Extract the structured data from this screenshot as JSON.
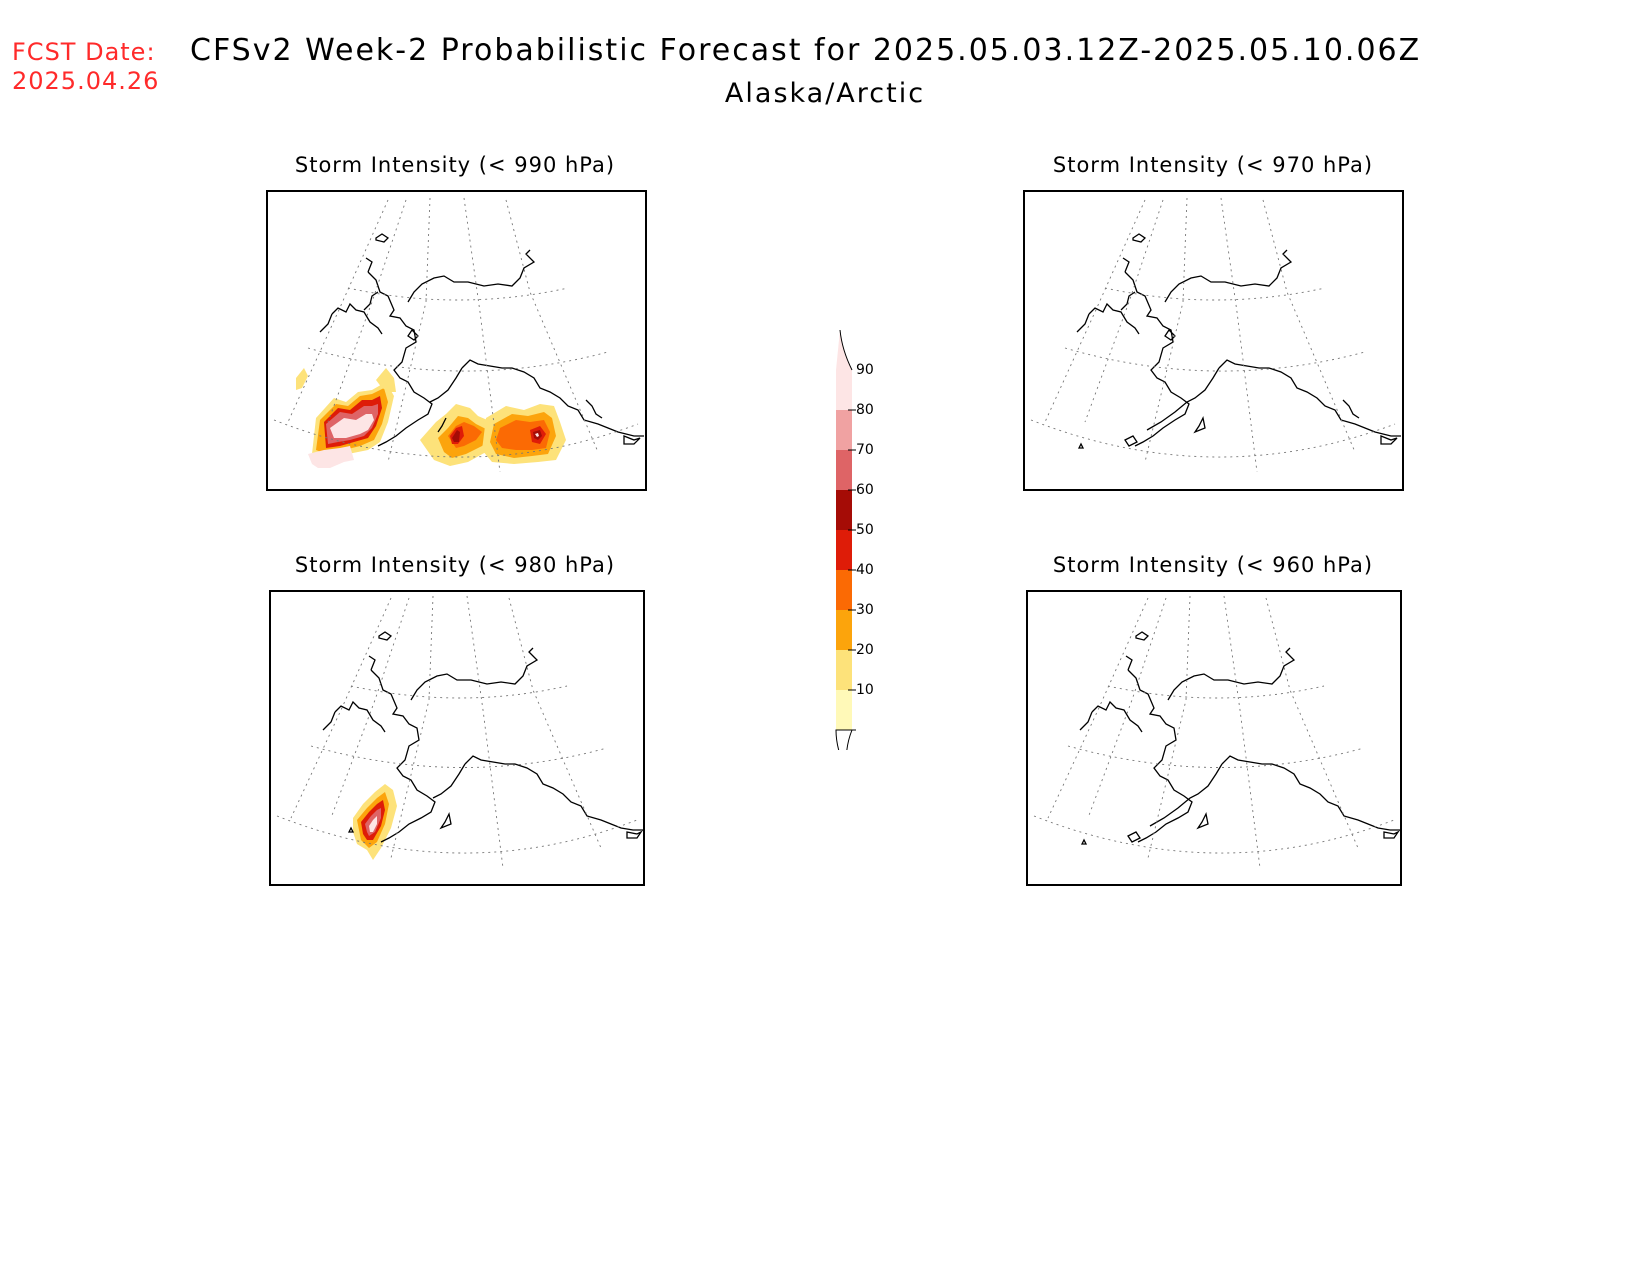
{
  "fcst_date": {
    "label": "FCST Date:",
    "value": "2025.04.26"
  },
  "header": {
    "title": "CFSv2 Week-2 Probabilistic Forecast for 2025.05.03.12Z-2025.05.10.06Z",
    "subtitle": "Alaska/Arctic"
  },
  "panels": [
    {
      "title": "Storm Intensity (< 990 hPa)",
      "has_shading": true
    },
    {
      "title": "Storm Intensity (< 970 hPa)",
      "has_shading": false
    },
    {
      "title": "Storm Intensity (< 980 hPa)",
      "has_shading": true
    },
    {
      "title": "Storm Intensity (< 960 hPa)",
      "has_shading": false
    }
  ],
  "legend": {
    "ticks": [
      "90",
      "80",
      "70",
      "60",
      "50",
      "40",
      "30",
      "20",
      "10"
    ],
    "colors": {
      "10-20": "#fff9b8",
      "20-30": "#fde27a",
      "30-40": "#fca40c",
      "40-50": "#fb6a04",
      "50-60": "#de1c08",
      "60-70": "#a50c06",
      "70-80": "#de6466",
      "80-90": "#f0a2a2",
      "90+": "#fde5e5"
    }
  }
}
